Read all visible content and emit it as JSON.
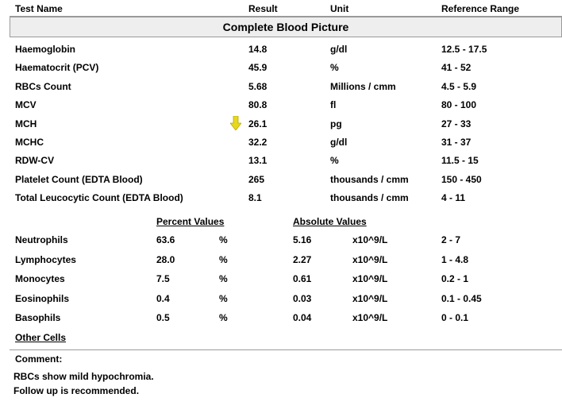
{
  "header": {
    "test_name": "Test Name",
    "result": "Result",
    "unit": "Unit",
    "reference_range": "Reference Range"
  },
  "section_title": "Complete Blood Picture",
  "tests": [
    {
      "name": "Haemoglobin",
      "result": "14.8",
      "unit": "g/dl",
      "range": "12.5 - 17.5",
      "flag": ""
    },
    {
      "name": "Haematocrit (PCV)",
      "result": "45.9",
      "unit": "%",
      "range": "41 - 52",
      "flag": ""
    },
    {
      "name": "RBCs Count",
      "result": "5.68",
      "unit": "Millions / cmm",
      "range": "4.5 - 5.9",
      "flag": ""
    },
    {
      "name": "MCV",
      "result": "80.8",
      "unit": "fl",
      "range": "80 - 100",
      "flag": ""
    },
    {
      "name": "MCH",
      "result": "26.1",
      "unit": "pg",
      "range": "27 - 33",
      "flag": "low-arrow-icon"
    },
    {
      "name": "MCHC",
      "result": "32.2",
      "unit": "g/dl",
      "range": "31 - 37",
      "flag": ""
    },
    {
      "name": "RDW-CV",
      "result": "13.1",
      "unit": "%",
      "range": "11.5 - 15",
      "flag": ""
    },
    {
      "name": "Platelet Count (EDTA Blood)",
      "result": "265",
      "unit": "thousands / cmm",
      "range": "150 - 450",
      "flag": ""
    },
    {
      "name": "Total Leucocytic Count (EDTA Blood)",
      "result": "8.1",
      "unit": "thousands / cmm",
      "range": "4 - 11",
      "flag": ""
    }
  ],
  "differential": {
    "percent_header": "Percent Values",
    "absolute_header": "Absolute Values",
    "rows": [
      {
        "name": "Neutrophils",
        "percent": "63.6",
        "percent_unit": "%",
        "absolute": "5.16",
        "absolute_unit": "x10^9/L",
        "range": "2 - 7"
      },
      {
        "name": "Lymphocytes",
        "percent": "28.0",
        "percent_unit": "%",
        "absolute": "2.27",
        "absolute_unit": "x10^9/L",
        "range": "1 - 4.8"
      },
      {
        "name": "Monocytes",
        "percent": "7.5",
        "percent_unit": "%",
        "absolute": "0.61",
        "absolute_unit": "x10^9/L",
        "range": "0.2 - 1"
      },
      {
        "name": "Eosinophils",
        "percent": "0.4",
        "percent_unit": "%",
        "absolute": "0.03",
        "absolute_unit": "x10^9/L",
        "range": "0.1 - 0.45"
      },
      {
        "name": "Basophils",
        "percent": "0.5",
        "percent_unit": "%",
        "absolute": "0.04",
        "absolute_unit": "x10^9/L",
        "range": "0 - 0.1"
      }
    ]
  },
  "other_cells": "Other Cells",
  "comment_label": "Comment:",
  "comment_lines": [
    "RBCs show mild hypochromia.",
    "Follow up is recommended."
  ],
  "colors": {
    "arrow": "#e6d81c",
    "section_bg": "#eeeeee",
    "rule": "#9a9a9a"
  }
}
